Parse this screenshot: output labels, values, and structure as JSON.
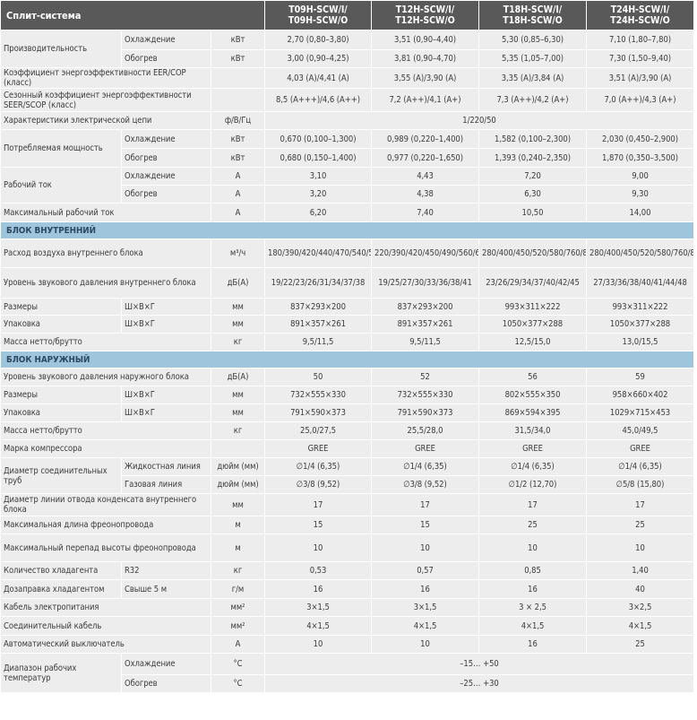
{
  "header": {
    "title": "Сплит-система",
    "models": [
      {
        "line1": "T09H-SCW/I/",
        "line2": "T09H-SCW/O"
      },
      {
        "line1": "T12H-SCW/I/",
        "line2": "T12H-SCW/O"
      },
      {
        "line1": "T18H-SCW/I/",
        "line2": "T18H-SCW/O"
      },
      {
        "line1": "T24H-SCW/I/",
        "line2": "T24H-SCW/O"
      }
    ]
  },
  "rows": [
    {
      "key": "capacity-cooling",
      "group": "Производительность",
      "sub": "Охлаждение",
      "unit": "кВт",
      "values": [
        "2,70 (0,80–3,80)",
        "3,51 (0,90–4,40)",
        "5,30 (0,85–6,30)",
        "7,10 (1,80–7,80)"
      ]
    },
    {
      "key": "capacity-heating",
      "group": "Производительность",
      "sub": "Обогрев",
      "unit": "кВт",
      "values": [
        "3,00 (0,90–4,25)",
        "3,81 (0,90–4,70)",
        "5,35 (1,05–7,00)",
        "7,30 (1,50–9,40)"
      ]
    },
    {
      "key": "eer-cop",
      "label": "Коэффициент энергоэффективности EER/COP (класс)",
      "values": [
        "4,03 (A)/4,41 (A)",
        "3,55 (A)/3,90 (A)",
        "3,35 (A)/3,84 (A)",
        "3,51 (A)/3,90 (A)"
      ]
    },
    {
      "key": "seer-scop",
      "label": "Сезонный коэффициент энергоэффективности SEER/SCOP (класс)",
      "values": [
        "8,5 (A+++)/4,6 (A++)",
        "7,2 (A++)/4,1 (A+)",
        "7,3 (A++)/4,2 (A+)",
        "7,0 (A++)/4,3 (A+)"
      ]
    },
    {
      "key": "power-supply",
      "label": "Характеристики электрической цепи",
      "unit": "ф/В/Гц",
      "span": "1/220/50"
    },
    {
      "key": "power-cooling",
      "group": "Потребляемая мощность",
      "sub": "Охлаждение",
      "unit": "кВт",
      "values": [
        "0,670 (0,100–1,300)",
        "0,989 (0,220–1,400)",
        "1,582 (0,100–2,300)",
        "2,030 (0,450–2,900)"
      ]
    },
    {
      "key": "power-heating",
      "group": "Потребляемая мощность",
      "sub": "Обогрев",
      "unit": "кВт",
      "values": [
        "0,680 (0,150–1,400)",
        "0,977 (0,220–1,650)",
        "1,393 (0,240–2,350)",
        "1,870 (0,350–3,500)"
      ]
    },
    {
      "key": "current-cooling",
      "group": "Рабочий ток",
      "sub": "Охлаждение",
      "unit": "А",
      "values": [
        "3,10",
        "4,43",
        "7,20",
        "9,00"
      ]
    },
    {
      "key": "current-heating",
      "group": "Рабочий ток",
      "sub": "Обогрев",
      "unit": "А",
      "values": [
        "3,20",
        "4,38",
        "6,30",
        "9,30"
      ]
    },
    {
      "key": "max-current",
      "label": "Максимальный рабочий ток",
      "unit": "А",
      "values": [
        "6,20",
        "7,40",
        "10,50",
        "14,00"
      ]
    },
    {
      "key": "section-indoor",
      "section": "Блок внутренний"
    },
    {
      "key": "airflow",
      "label": "Расход воздуха внутреннего блока",
      "unit": "м³/ч",
      "values": [
        "180/390/420/440/470/540/570/610",
        "220/390/420/450/490/560/620/680",
        "280/400/450/520/580/760/850/1000",
        "280/400/450/520/580/760/850/1000"
      ]
    },
    {
      "key": "indoor-noise",
      "label": "Уровень звукового давления внутреннего блока",
      "unit": "дБ(А)",
      "values": [
        "19/22/23/26/31/34/37/38",
        "19/25/27/30/33/36/38/41",
        "23/26/29/34/37/40/42/45",
        "27/33/36/38/40/41/44/48"
      ]
    },
    {
      "key": "indoor-dims",
      "label": "Размеры",
      "sub": "Ш×В×Г",
      "unit": "мм",
      "values": [
        "837×293×200",
        "837×293×200",
        "993×311×222",
        "993×311×222"
      ]
    },
    {
      "key": "indoor-pack",
      "label": "Упаковка",
      "sub": "Ш×В×Г",
      "unit": "мм",
      "values": [
        "891×357×261",
        "891×357×261",
        "1050×377×288",
        "1050×377×288"
      ]
    },
    {
      "key": "indoor-weight",
      "label": "Масса нетто/брутто",
      "unit": "кг",
      "values": [
        "9,5/11,5",
        "9,5/11,5",
        "12,5/15,0",
        "13,0/15,5"
      ]
    },
    {
      "key": "section-outdoor",
      "section": "Блок наружный"
    },
    {
      "key": "outdoor-noise",
      "label": "Уровень звукового давления наружного блока",
      "unit": "дБ(А)",
      "values": [
        "50",
        "52",
        "56",
        "59"
      ]
    },
    {
      "key": "outdoor-dims",
      "label": "Размеры",
      "sub": "Ш×В×Г",
      "unit": "мм",
      "values": [
        "732×555×330",
        "732×555×330",
        "802×555×350",
        "958×660×402"
      ]
    },
    {
      "key": "outdoor-pack",
      "label": "Упаковка",
      "sub": "Ш×В×Г",
      "unit": "мм",
      "values": [
        "791×590×373",
        "791×590×373",
        "869×594×395",
        "1029×715×453"
      ]
    },
    {
      "key": "outdoor-weight",
      "label": "Масса нетто/брутто",
      "unit": "кг",
      "values": [
        "25,0/27,5",
        "25,5/28,0",
        "31,5/34,0",
        "45,0/49,5"
      ]
    },
    {
      "key": "compressor",
      "label": "Марка компрессора",
      "values": [
        "GREE",
        "GREE",
        "GREE",
        "GREE"
      ]
    },
    {
      "key": "pipe-liquid",
      "group": "Диаметр соединительных труб",
      "sub": "Жидкостная линия",
      "unit": "дюйм (мм)",
      "values": [
        "∅1/4 (6,35)",
        "∅1/4 (6,35)",
        "∅1/4 (6,35)",
        "∅1/4 (6,35)"
      ]
    },
    {
      "key": "pipe-gas",
      "group": "Диаметр соединительных труб",
      "sub": "Газовая линия",
      "unit": "дюйм (мм)",
      "values": [
        "∅3/8 (9,52)",
        "∅3/8 (9,52)",
        "∅1/2 (12,70)",
        "∅5/8 (15,80)"
      ]
    },
    {
      "key": "drain",
      "label": "Диаметр линии отвода конденсата внутреннего блока",
      "unit": "мм",
      "values": [
        "17",
        "17",
        "17",
        "17"
      ]
    },
    {
      "key": "max-pipe-length",
      "label": "Максимальная длина фреонопровода",
      "unit": "м",
      "values": [
        "15",
        "15",
        "25",
        "25"
      ]
    },
    {
      "key": "max-height",
      "label": "Максимальный перепад высоты фреонопровода",
      "unit": "м",
      "values": [
        "10",
        "10",
        "10",
        "10"
      ]
    },
    {
      "key": "refrigerant",
      "label": "Количество хладагента",
      "sub": "R32",
      "unit": "кг",
      "values": [
        "0,53",
        "0,57",
        "0,85",
        "1,40"
      ]
    },
    {
      "key": "refill",
      "label": "Дозаправка хладагентом",
      "sub": "Свыше 5 м",
      "unit": "г/м",
      "values": [
        "16",
        "16",
        "16",
        "40"
      ]
    },
    {
      "key": "power-cable",
      "label": "Кабель электропитания",
      "unit": "мм²",
      "values": [
        "3×1,5",
        "3×1,5",
        "3 × 2,5",
        "3×2,5"
      ]
    },
    {
      "key": "connect-cable",
      "label": "Соединительный кабель",
      "unit": "мм²",
      "values": [
        "4×1,5",
        "4×1,5",
        "4×1,5",
        "4×1,5"
      ]
    },
    {
      "key": "breaker",
      "label": "Автоматический выключатель",
      "unit": "А",
      "values": [
        "10",
        "10",
        "16",
        "25"
      ]
    },
    {
      "key": "temp-cooling",
      "group": "Диапазон рабочих температур",
      "sub": "Охлаждение",
      "unit": "°С",
      "span": "–15… +50"
    },
    {
      "key": "temp-heating",
      "group": "Диапазон рабочих температур",
      "sub": "Обогрев",
      "unit": "°С",
      "span": "–25… +30"
    }
  ]
}
